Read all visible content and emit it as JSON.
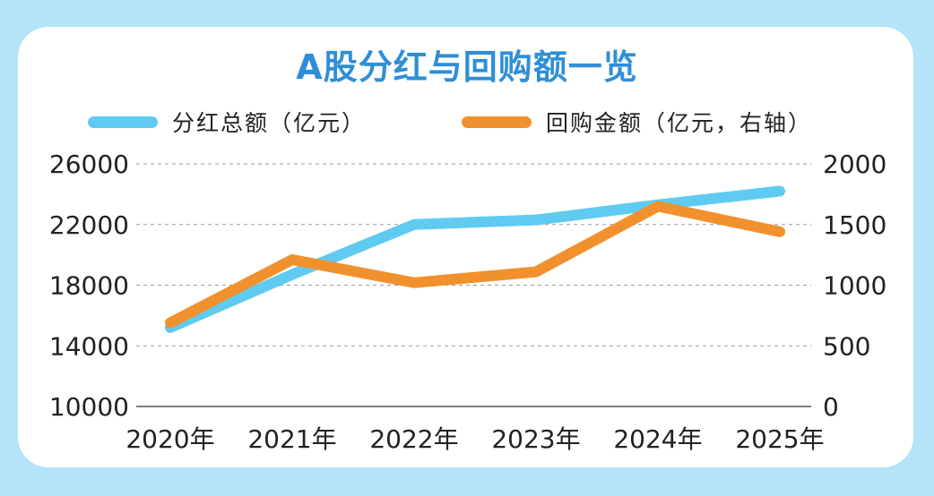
{
  "colors": {
    "dividend": "#5fcbf0",
    "buyback": "#f0912e",
    "title": "#2f8fd6",
    "background": "#b5e3f7"
  },
  "chart_data": {
    "type": "line",
    "title": "A股分红与回购额一览",
    "categories": [
      "2020年",
      "2021年",
      "2022年",
      "2023年",
      "2024年",
      "2025年"
    ],
    "series": [
      {
        "name": "分红总额（亿元）",
        "axis": "left",
        "values": [
          15200,
          18700,
          22000,
          22300,
          23300,
          24200
        ]
      },
      {
        "name": "回购金额（亿元，右轴）",
        "axis": "right",
        "values": [
          690,
          1210,
          1020,
          1110,
          1650,
          1440
        ]
      }
    ],
    "y_left": {
      "ticks": [
        "26000",
        "22000",
        "18000",
        "14000",
        "10000"
      ],
      "range": [
        10000,
        26000
      ]
    },
    "y_right": {
      "ticks": [
        "2000",
        "1500",
        "1000",
        "500",
        "0"
      ],
      "range": [
        0,
        2000
      ]
    },
    "grid": "dashed horizontal",
    "legend_position": "top"
  }
}
